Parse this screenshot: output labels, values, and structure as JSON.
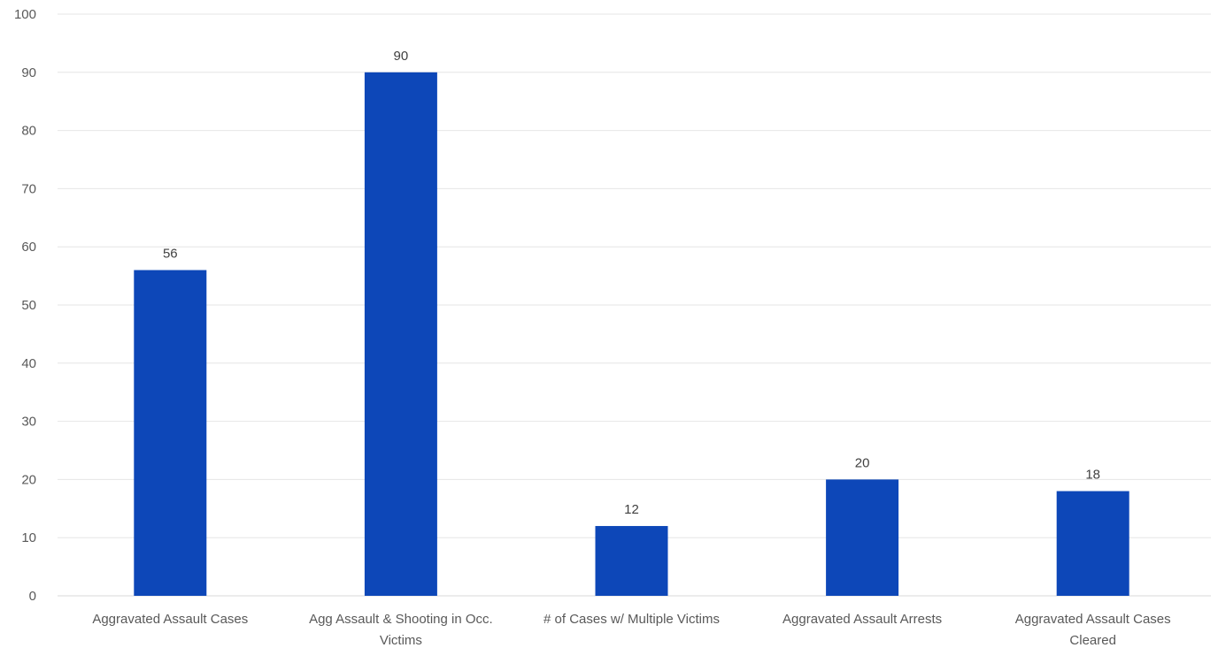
{
  "chart_data": {
    "type": "bar",
    "title": "",
    "xlabel": "",
    "ylabel": "",
    "categories": [
      "Aggravated Assault Cases",
      "Agg Assault & Shooting in Occ. Victims",
      "# of Cases w/ Multiple Victims",
      "Aggravated Assault Arrests",
      "Aggravated Assault Cases Cleared"
    ],
    "category_lines": [
      [
        "Aggravated Assault Cases"
      ],
      [
        "Agg Assault & Shooting in Occ.",
        "Victims"
      ],
      [
        "# of Cases w/ Multiple Victims"
      ],
      [
        "Aggravated Assault Arrests"
      ],
      [
        "Aggravated Assault Cases",
        "Cleared"
      ]
    ],
    "values": [
      56,
      90,
      12,
      20,
      18
    ],
    "data_labels": [
      "56",
      "90",
      "12",
      "20",
      "18"
    ],
    "ylim": [
      0,
      100
    ],
    "yticks": [
      "0",
      "10",
      "20",
      "30",
      "40",
      "50",
      "60",
      "70",
      "80",
      "90",
      "100"
    ],
    "grid": true,
    "legend": "none",
    "bar_color": "#0d47b8"
  }
}
